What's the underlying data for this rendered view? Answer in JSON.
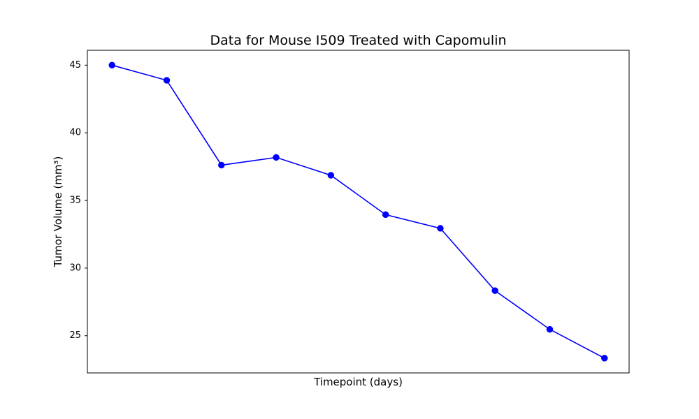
{
  "chart_data": {
    "type": "line",
    "title": "Data for Mouse I509 Treated with Capomulin",
    "xlabel": "Timepoint (days)",
    "ylabel": "Tumor Volume (mm³)",
    "x": [
      0,
      5,
      10,
      15,
      20,
      25,
      30,
      35,
      40,
      45
    ],
    "show_x_ticks": false,
    "series": [
      {
        "values": [
          45.0,
          43.88,
          37.61,
          38.18,
          36.86,
          33.95,
          32.94,
          28.33,
          25.47,
          23.34
        ],
        "color": "#0000ff",
        "marker": "circle"
      }
    ],
    "xlim": [
      -2.25,
      47.25
    ],
    "ylim": [
      22.25,
      46.1
    ],
    "yticks": [
      25,
      30,
      35,
      40,
      45
    ],
    "grid": false,
    "legend": false
  }
}
